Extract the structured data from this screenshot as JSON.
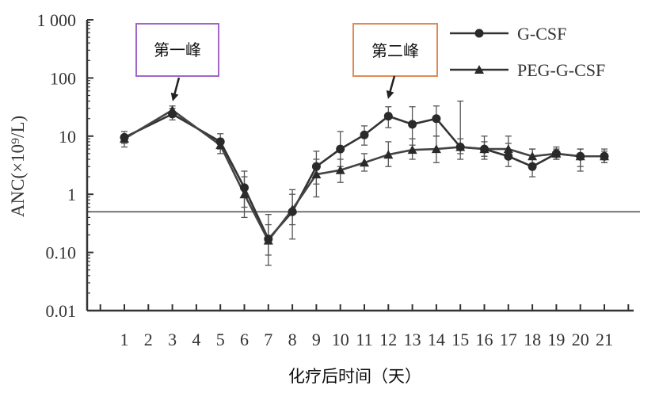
{
  "chart_data": {
    "type": "line",
    "title": "",
    "xlabel": "化疗后时间（天）",
    "ylabel": "ANC(×10⁹/L)",
    "yscale": "log",
    "ylim": [
      0.01,
      1000
    ],
    "xlim": [
      0,
      22
    ],
    "grid": false,
    "legend_position": "top-right",
    "x": [
      1,
      2,
      3,
      4,
      5,
      6,
      7,
      8,
      9,
      10,
      11,
      12,
      13,
      14,
      15,
      16,
      17,
      18,
      19,
      20,
      21
    ],
    "x_tick_labels": [
      "1",
      "2",
      "3",
      "4",
      "5",
      "6",
      "7",
      "8",
      "9",
      "10",
      "11",
      "12",
      "13",
      "14",
      "15",
      "16",
      "17",
      "18",
      "19",
      "20",
      "21"
    ],
    "y_ticks": [
      0.01,
      0.1,
      1,
      10,
      100,
      1000
    ],
    "y_tick_labels": [
      "0.01",
      "0.10",
      "1",
      "10",
      "100",
      "1 000"
    ],
    "reference_line": {
      "y": 0.5
    },
    "series": [
      {
        "name": "G-CSF",
        "marker": "circle",
        "points": [
          {
            "x": 1,
            "y": 9.5,
            "lo": 7.5,
            "hi": 12
          },
          {
            "x": 3,
            "y": 24,
            "lo": 19,
            "hi": 30
          },
          {
            "x": 5,
            "y": 8,
            "lo": 6,
            "hi": 11
          },
          {
            "x": 6,
            "y": 1.3,
            "lo": 0.6,
            "hi": 2.5
          },
          {
            "x": 7,
            "y": 0.17,
            "lo": 0.09,
            "hi": 0.3
          },
          {
            "x": 8,
            "y": 0.5,
            "lo": 0.3,
            "hi": 1
          },
          {
            "x": 9,
            "y": 3,
            "lo": 1.5,
            "hi": 5.5
          },
          {
            "x": 10,
            "y": 6,
            "lo": 3,
            "hi": 12
          },
          {
            "x": 11,
            "y": 10.5,
            "lo": 7,
            "hi": 15
          },
          {
            "x": 12,
            "y": 22,
            "lo": 14,
            "hi": 32
          },
          {
            "x": 13,
            "y": 16,
            "lo": 7,
            "hi": 32
          },
          {
            "x": 14,
            "y": 20,
            "lo": 10,
            "hi": 33
          },
          {
            "x": 15,
            "y": 6.5,
            "lo": 5,
            "hi": 40
          },
          {
            "x": 16,
            "y": 6,
            "lo": 4,
            "hi": 10
          },
          {
            "x": 17,
            "y": 4.5,
            "lo": 3,
            "hi": 10
          },
          {
            "x": 18,
            "y": 3,
            "lo": 2,
            "hi": 6
          },
          {
            "x": 19,
            "y": 5,
            "lo": 4,
            "hi": 6.5
          },
          {
            "x": 20,
            "y": 4.5,
            "lo": 2.5,
            "hi": 6
          },
          {
            "x": 21,
            "y": 4.5,
            "lo": 3.5,
            "hi": 6
          }
        ]
      },
      {
        "name": "PEG-G-CSF",
        "marker": "triangle",
        "points": [
          {
            "x": 1,
            "y": 9,
            "lo": 6.5,
            "hi": 10.5
          },
          {
            "x": 3,
            "y": 28,
            "lo": 22,
            "hi": 33
          },
          {
            "x": 5,
            "y": 7,
            "lo": 5,
            "hi": 9
          },
          {
            "x": 6,
            "y": 1,
            "lo": 0.4,
            "hi": 2
          },
          {
            "x": 7,
            "y": 0.16,
            "lo": 0.06,
            "hi": 0.45
          },
          {
            "x": 8,
            "y": 0.55,
            "lo": 0.17,
            "hi": 1.2
          },
          {
            "x": 9,
            "y": 2.2,
            "lo": 0.9,
            "hi": 4
          },
          {
            "x": 10,
            "y": 2.6,
            "lo": 1.6,
            "hi": 4
          },
          {
            "x": 11,
            "y": 3.5,
            "lo": 2.5,
            "hi": 5
          },
          {
            "x": 12,
            "y": 4.8,
            "lo": 3,
            "hi": 8
          },
          {
            "x": 13,
            "y": 5.8,
            "lo": 4,
            "hi": 9
          },
          {
            "x": 14,
            "y": 6,
            "lo": 3.5,
            "hi": 10
          },
          {
            "x": 15,
            "y": 6.5,
            "lo": 4,
            "hi": 9
          },
          {
            "x": 16,
            "y": 6,
            "lo": 4.5,
            "hi": 8
          },
          {
            "x": 17,
            "y": 6,
            "lo": 4.5,
            "hi": 7.5
          },
          {
            "x": 18,
            "y": 4.5,
            "lo": 3,
            "hi": 6
          },
          {
            "x": 19,
            "y": 5,
            "lo": 4,
            "hi": 6
          },
          {
            "x": 20,
            "y": 4.5,
            "lo": 3,
            "hi": 6
          },
          {
            "x": 21,
            "y": 4.5,
            "lo": 3.5,
            "hi": 5.5
          }
        ]
      }
    ],
    "annotations": [
      {
        "text": "第一峰",
        "x": 3,
        "y": 28,
        "box_color": "#a066c8"
      },
      {
        "text": "第二峰",
        "x": 12,
        "y": 22,
        "box_color": "#e08a55"
      }
    ]
  }
}
